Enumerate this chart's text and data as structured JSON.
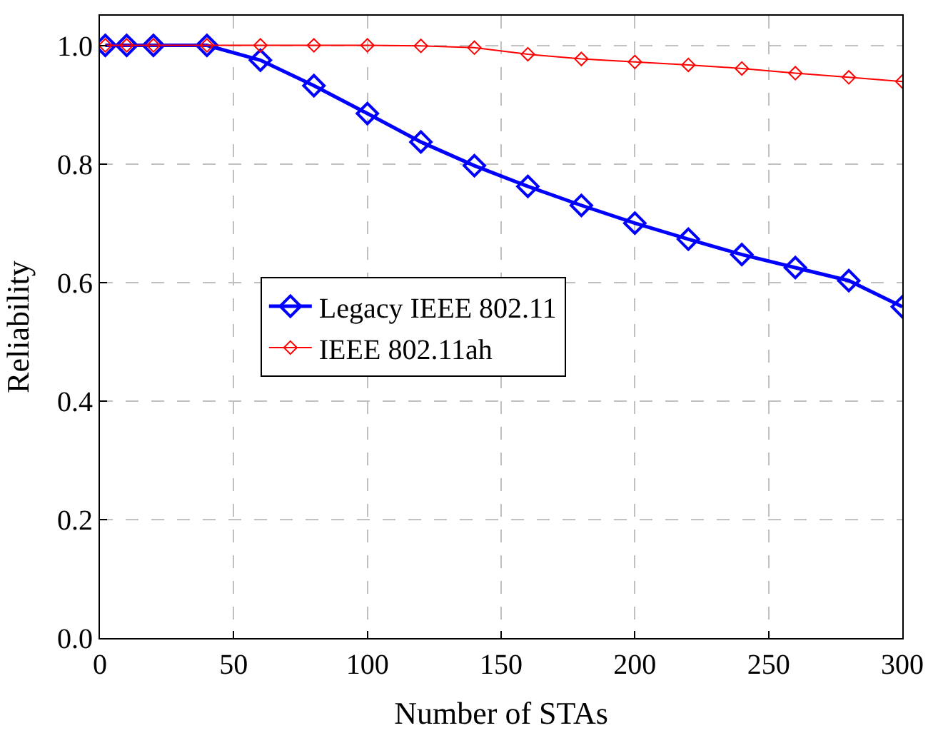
{
  "chart_data": {
    "type": "line",
    "xlabel": "Number of STAs",
    "ylabel": "Reliability",
    "x": [
      2,
      10,
      20,
      40,
      60,
      80,
      100,
      120,
      140,
      160,
      180,
      200,
      220,
      240,
      260,
      280,
      300
    ],
    "series": [
      {
        "name": "Legacy IEEE 802.11",
        "color": "#0000ff",
        "values": [
          1.0,
          1.0,
          1.0,
          1.0,
          0.975,
          0.932,
          0.885,
          0.837,
          0.797,
          0.762,
          0.73,
          0.7,
          0.673,
          0.647,
          0.625,
          0.603,
          0.559
        ]
      },
      {
        "name": "IEEE 802.11ah",
        "color": "#ff0000",
        "values": [
          1.0,
          1.0,
          1.0,
          1.0,
          1.0,
          1.0,
          1.0,
          0.999,
          0.996,
          0.985,
          0.977,
          0.972,
          0.967,
          0.961,
          0.953,
          0.946,
          0.939
        ]
      }
    ],
    "xlim": [
      0,
      300
    ],
    "xticks": [
      0,
      50,
      100,
      150,
      200,
      250,
      300
    ],
    "ylim": [
      0,
      1.05
    ],
    "yticks": [
      {
        "value": 0,
        "label": "0.0"
      },
      {
        "value": 0.2,
        "label": "0.2"
      },
      {
        "value": 0.4,
        "label": "0.4"
      },
      {
        "value": 0.6,
        "label": "0.6"
      },
      {
        "value": 0.8,
        "label": "0.8"
      },
      {
        "value": 1.0,
        "label": "1.0"
      }
    ],
    "grid": true,
    "legend": "center",
    "marker": "diamond",
    "line_style": "solid"
  }
}
